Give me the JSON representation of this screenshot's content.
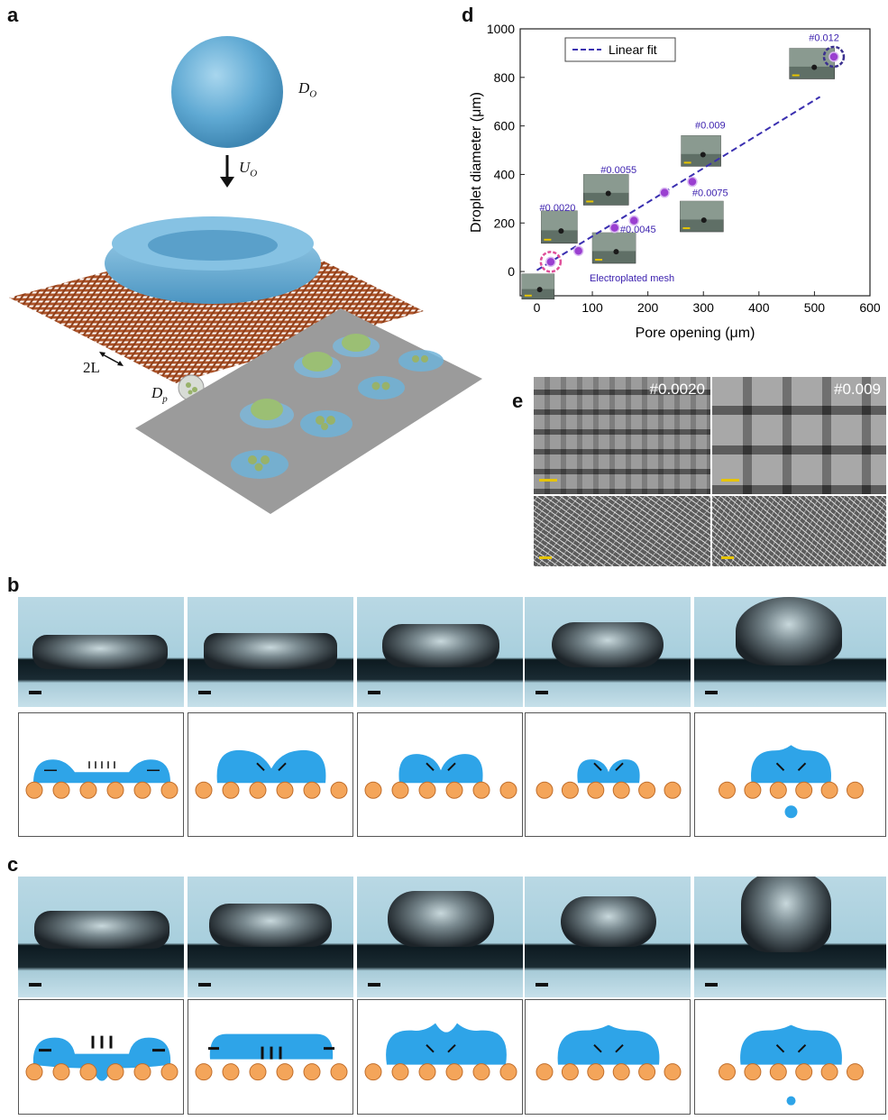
{
  "panels": {
    "a": "a",
    "b": "b",
    "c": "c",
    "d": "d",
    "e": "e"
  },
  "panel_a": {
    "label_DO": "D",
    "label_DO_sub": "O",
    "label_UO": "U",
    "label_UO_sub": "O",
    "label_2L": "2L",
    "label_Dp": "D",
    "label_Dp_sub": "p",
    "colors": {
      "droplet": "#6fb3d8",
      "mesh": "#b0552a",
      "substrate": "#8c8c8c"
    }
  },
  "panel_e": {
    "left_label": "#0.0020",
    "right_label": "#0.009"
  },
  "chart_data": {
    "type": "scatter",
    "xlabel": "Pore opening (μm)",
    "ylabel": "Droplet diameter (μm)",
    "xlim": [
      -30,
      600
    ],
    "ylim": [
      -100,
      1000
    ],
    "xticks": [
      "0",
      "100",
      "200",
      "300",
      "400",
      "500",
      "600"
    ],
    "yticks": [
      "0",
      "200",
      "400",
      "600",
      "800",
      "1000"
    ],
    "legend": {
      "label": "Linear fit",
      "placement": "top-left"
    },
    "points": [
      {
        "x": 25,
        "y": 40
      },
      {
        "x": 75,
        "y": 85
      },
      {
        "x": 140,
        "y": 180
      },
      {
        "x": 175,
        "y": 210
      },
      {
        "x": 230,
        "y": 325
      },
      {
        "x": 280,
        "y": 370
      },
      {
        "x": 535,
        "y": 885
      }
    ],
    "highlighted_points": [
      {
        "x": 25,
        "y": 40,
        "color": "#e0509a"
      },
      {
        "x": 535,
        "y": 885,
        "color": "#3a2f8f"
      }
    ],
    "fit_line": {
      "x": [
        0,
        510
      ],
      "y": [
        5,
        720
      ]
    },
    "annotations": [
      {
        "text": "#0.012",
        "x": 490,
        "y": 950
      },
      {
        "text": "#0.009",
        "x": 285,
        "y": 590
      },
      {
        "text": "#0.0055",
        "x": 115,
        "y": 405
      },
      {
        "text": "#0.0075",
        "x": 280,
        "y": 310
      },
      {
        "text": "#0.0020",
        "x": 5,
        "y": 250
      },
      {
        "text": "#0.0045",
        "x": 150,
        "y": 160
      },
      {
        "text": "Electroplated mesh",
        "x": 95,
        "y": -40
      }
    ],
    "colors": {
      "points": "#9a3fd0",
      "fit": "#3a2fb0",
      "annotation_text": "#3a1fae"
    }
  }
}
